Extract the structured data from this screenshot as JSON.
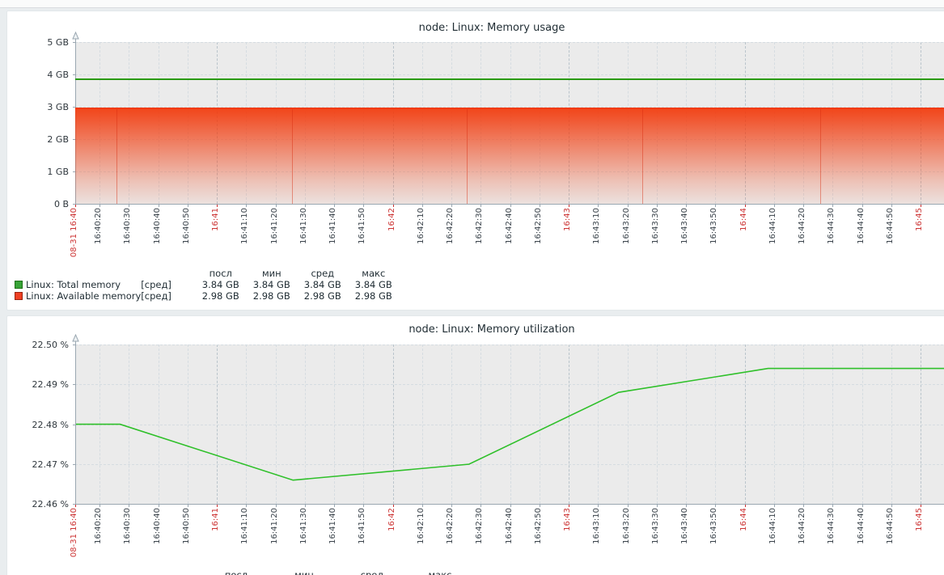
{
  "x_axis": {
    "labels": [
      {
        "label": "08-31 16:40",
        "red": true
      },
      {
        "label": "16:40:20",
        "red": false
      },
      {
        "label": "16:40:30",
        "red": false
      },
      {
        "label": "16:40:40",
        "red": false
      },
      {
        "label": "16:40:50",
        "red": false
      },
      {
        "label": "16:41",
        "red": true
      },
      {
        "label": "16:41:10",
        "red": false
      },
      {
        "label": "16:41:20",
        "red": false
      },
      {
        "label": "16:41:30",
        "red": false
      },
      {
        "label": "16:41:40",
        "red": false
      },
      {
        "label": "16:41:50",
        "red": false
      },
      {
        "label": "16:42",
        "red": true
      },
      {
        "label": "16:42:10",
        "red": false
      },
      {
        "label": "16:42:20",
        "red": false
      },
      {
        "label": "16:42:30",
        "red": false
      },
      {
        "label": "16:42:40",
        "red": false
      },
      {
        "label": "16:42:50",
        "red": false
      },
      {
        "label": "16:43",
        "red": true
      },
      {
        "label": "16:43:10",
        "red": false
      },
      {
        "label": "16:43:20",
        "red": false
      },
      {
        "label": "16:43:30",
        "red": false
      },
      {
        "label": "16:43:40",
        "red": false
      },
      {
        "label": "16:43:50",
        "red": false
      },
      {
        "label": "16:44",
        "red": true
      },
      {
        "label": "16:44:10",
        "red": false
      },
      {
        "label": "16:44:20",
        "red": false
      },
      {
        "label": "16:44:30",
        "red": false
      },
      {
        "label": "16:44:40",
        "red": false
      },
      {
        "label": "16:44:50",
        "red": false
      },
      {
        "label": "16:45",
        "red": true
      }
    ]
  },
  "charts": [
    {
      "title": "node: Linux: Memory usage",
      "y_ticks": [
        "5 GB",
        "4 GB",
        "3 GB",
        "2 GB",
        "1 GB",
        "0 B"
      ],
      "colors": {
        "line": "#2a9a14",
        "area": "#f23a0c"
      },
      "legend": {
        "headers": [
          "посл",
          "мин",
          "сред",
          "макс"
        ],
        "rows": [
          {
            "swatch": "#37a337",
            "swatch_border": "#1d6f14",
            "name": "Linux: Total memory",
            "func": "[сред]",
            "values": [
              "3.84 GB",
              "3.84 GB",
              "3.84 GB",
              "3.84 GB"
            ]
          },
          {
            "swatch": "#ef4023",
            "swatch_border": "#992410",
            "name": "Linux: Available memory",
            "func": "[сред]",
            "values": [
              "2.98 GB",
              "2.98 GB",
              "2.98 GB",
              "2.98 GB"
            ]
          }
        ]
      }
    },
    {
      "title": "node: Linux: Memory utilization",
      "y_ticks": [
        "22.50 %",
        "22.49 %",
        "22.48 %",
        "22.47 %",
        "22.46 %"
      ],
      "colors": {
        "line": "#2fc02a"
      },
      "legend": {
        "headers": [
          "посл",
          "мин",
          "сред",
          "макс"
        ],
        "rows": []
      }
    }
  ],
  "chart_data": [
    {
      "type": "line",
      "title": "node: Linux: Memory usage",
      "unit": "GB",
      "ylim": [
        0,
        5
      ],
      "x_range": "08-31 16:40 — 16:45 (10 s ticks)",
      "grid": true,
      "series": [
        {
          "name": "Linux: Total memory",
          "style": "line",
          "color": "#2a9a14",
          "value_gb": 3.84,
          "stats": {
            "посл": "3.84 GB",
            "мин": "3.84 GB",
            "сред": "3.84 GB",
            "макс": "3.84 GB"
          }
        },
        {
          "name": "Linux: Available memory",
          "style": "gradient-area",
          "color": "#f23a0c",
          "value_gb": 2.98,
          "stats": {
            "посл": "2.98 GB",
            "мин": "2.98 GB",
            "сред": "2.98 GB",
            "макс": "2.98 GB"
          }
        }
      ]
    },
    {
      "type": "line",
      "title": "node: Linux: Memory utilization",
      "unit": "%",
      "ylim": [
        22.46,
        22.505
      ],
      "x_range": "08-31 16:40 — 16:45 (10 s ticks)",
      "grid": true,
      "points_note": "s = seconds after 16:40:20",
      "points": [
        {
          "s": -8,
          "v": 22.48
        },
        {
          "s": 7,
          "v": 22.48
        },
        {
          "s": 66,
          "v": 22.466
        },
        {
          "s": 126,
          "v": 22.47
        },
        {
          "s": 177,
          "v": 22.488
        },
        {
          "s": 228,
          "v": 22.494
        },
        {
          "s": 300,
          "v": 22.494
        }
      ]
    }
  ]
}
